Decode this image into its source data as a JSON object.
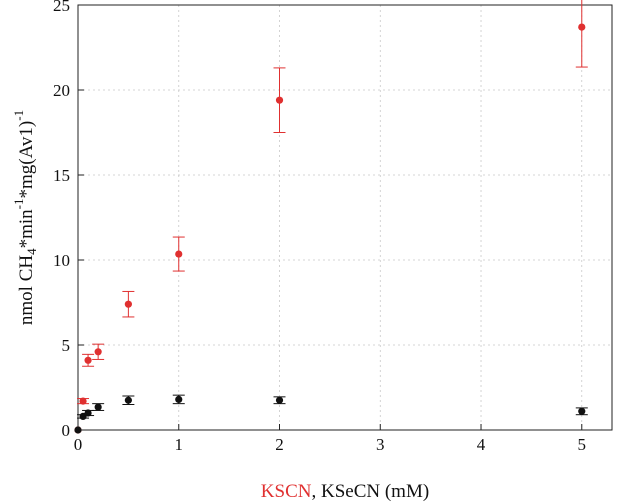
{
  "chart_data": {
    "type": "scatter",
    "title": "",
    "xlabel_parts": [
      {
        "text": "KSCN",
        "color": "#e03030"
      },
      {
        "text": ", KSeCN (mM)",
        "color": "#111111"
      }
    ],
    "ylabel_parts": [
      {
        "text": "nmol CH",
        "shift": "none"
      },
      {
        "text": "4",
        "shift": "sub"
      },
      {
        "text": "*min",
        "shift": "none"
      },
      {
        "text": "-1",
        "shift": "super"
      },
      {
        "text": "*mg(Av1)",
        "shift": "none"
      },
      {
        "text": "-1",
        "shift": "super"
      }
    ],
    "xlim": [
      0,
      5.3
    ],
    "ylim": [
      0,
      25
    ],
    "xticks": [
      0,
      1,
      2,
      3,
      4,
      5
    ],
    "yticks": [
      0,
      5,
      10,
      15,
      20,
      25
    ],
    "grid": true,
    "legend": "none",
    "series": [
      {
        "color": "#e03030",
        "points": [
          {
            "x": 0,
            "y": 0,
            "err": 0
          },
          {
            "x": 0.05,
            "y": 1.7,
            "err": 0.15
          },
          {
            "x": 0.1,
            "y": 4.1,
            "err": 0.35
          },
          {
            "x": 0.2,
            "y": 4.6,
            "err": 0.45
          },
          {
            "x": 0.5,
            "y": 7.4,
            "err": 0.75
          },
          {
            "x": 1,
            "y": 10.35,
            "err": 1.0
          },
          {
            "x": 2,
            "y": 19.4,
            "err": 1.9
          },
          {
            "x": 5,
            "y": 23.7,
            "err": 2.35
          }
        ]
      },
      {
        "color": "#111111",
        "points": [
          {
            "x": 0,
            "y": 0,
            "err": 0
          },
          {
            "x": 0.05,
            "y": 0.8,
            "err": 0.1
          },
          {
            "x": 0.1,
            "y": 1.0,
            "err": 0.15
          },
          {
            "x": 0.2,
            "y": 1.35,
            "err": 0.2
          },
          {
            "x": 0.5,
            "y": 1.75,
            "err": 0.25
          },
          {
            "x": 1,
            "y": 1.8,
            "err": 0.25
          },
          {
            "x": 2,
            "y": 1.75,
            "err": 0.2
          },
          {
            "x": 5,
            "y": 1.1,
            "err": 0.2
          }
        ]
      }
    ]
  }
}
